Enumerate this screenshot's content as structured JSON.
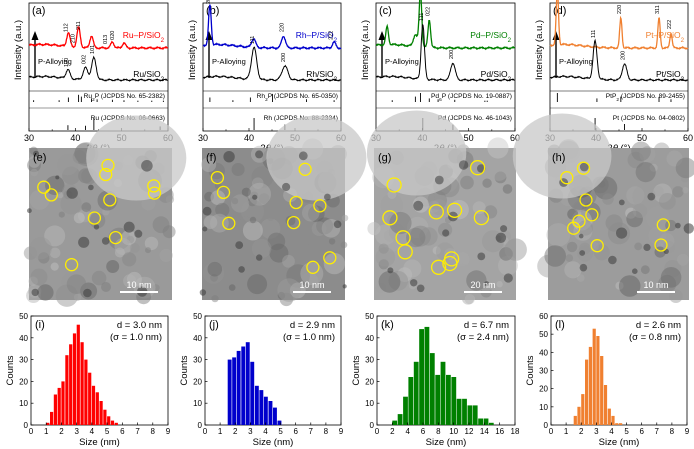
{
  "figure": {
    "xrd_xlabel_prefix": "2",
    "xrd_xlabel_theta": "θ",
    "xrd_xlabel_suffix": " (°)",
    "xrd_ylabel": "Intensity (a.u.)",
    "hist_xlabel": "Size (nm)",
    "hist_ylabel": "Counts",
    "arrow_label": "P-Alloying"
  },
  "tem_panels": [
    {
      "label": "(e)",
      "scale": "10 nm",
      "circles": 10
    },
    {
      "label": "(f)",
      "scale": "10 nm",
      "circles": 9
    },
    {
      "label": "(g)",
      "scale": "20 nm",
      "circles": 11
    },
    {
      "label": "(h)",
      "scale": "10 nm",
      "circles": 9
    }
  ],
  "chart_data": [
    {
      "type": "line",
      "label": "(a)",
      "xlabel": "2θ (°)",
      "ylabel": "Intensity (a.u.)",
      "xlim": [
        30,
        60
      ],
      "xticks": [
        30,
        40,
        50,
        60
      ],
      "series": [
        {
          "name": "Ru–P/SiO2",
          "color": "#ff0000",
          "peaks": [
            [
              38.5,
              0.14,
              0.5
            ],
            [
              40.7,
              0.2,
              0.5
            ],
            [
              43.5,
              0.12,
              0.5
            ],
            [
              48.0,
              0.06,
              0.5
            ],
            [
              50.5,
              0.05,
              0.5
            ]
          ],
          "peak_labels": [
            {
              "x": 38.3,
              "text": "112"
            },
            {
              "x": 39.8,
              "text": "210"
            },
            {
              "x": 41.0,
              "text": "211"
            },
            {
              "x": 46.8,
              "text": "013"
            },
            {
              "x": 48.3,
              "text": "020"
            }
          ]
        },
        {
          "name": "Ru/SiO2",
          "color": "#000000",
          "peaks": [
            [
              38.4,
              0.09,
              0.6
            ],
            [
              42.2,
              0.12,
              0.7
            ],
            [
              44.0,
              0.22,
              0.7
            ]
          ],
          "peak_labels": [
            {
              "x": 38.4,
              "text": "100"
            },
            {
              "x": 42.2,
              "text": "002"
            },
            {
              "x": 44.0,
              "text": "101"
            }
          ]
        }
      ],
      "reference_top": {
        "label": "Ru2P (JCPDS No. 65-2382)",
        "lines": [
          [
            31.0,
            0.2
          ],
          [
            36.5,
            0.2
          ],
          [
            38.5,
            0.5
          ],
          [
            40.7,
            0.8
          ],
          [
            41.3,
            0.6
          ],
          [
            43.5,
            0.4
          ],
          [
            44.7,
            0.3
          ],
          [
            48.0,
            0.25
          ],
          [
            50.5,
            0.2
          ],
          [
            53.5,
            0.15
          ],
          [
            56.5,
            0.15
          ],
          [
            59.0,
            0.15
          ]
        ]
      },
      "reference_bottom": {
        "label": "Ru (JCPDS No. 06-0663)",
        "lines": [
          [
            38.4,
            0.4
          ],
          [
            42.2,
            0.35
          ],
          [
            44.0,
            1.0
          ],
          [
            58.3,
            0.3
          ]
        ]
      }
    },
    {
      "type": "line",
      "label": "(b)",
      "xlabel": "2θ (°)",
      "ylabel": "Intensity (a.u.)",
      "xlim": [
        30,
        60
      ],
      "xticks": [
        30,
        40,
        50,
        60
      ],
      "series": [
        {
          "name": "Rh–P/SiO2",
          "color": "#0000cc",
          "peaks": [
            [
              31.5,
              0.4,
              0.4
            ],
            [
              41.0,
              0.09,
              0.6
            ],
            [
              47.5,
              0.12,
              0.6
            ],
            [
              58.5,
              0.06,
              0.5
            ]
          ],
          "peak_labels": [
            {
              "x": 31.5,
              "text": "200"
            },
            {
              "x": 47.5,
              "text": "220"
            },
            {
              "x": 58.2,
              "text": "222"
            }
          ]
        },
        {
          "name": "Rh/SiO2",
          "color": "#000000",
          "peaks": [
            [
              41.1,
              0.32,
              0.8
            ],
            [
              47.8,
              0.14,
              0.9
            ]
          ],
          "peak_labels": [
            {
              "x": 41.1,
              "text": "111"
            },
            {
              "x": 47.8,
              "text": "200"
            }
          ]
        }
      ],
      "reference_top": {
        "label": "Rh2P (JCPDS No. 65-0350)",
        "lines": [
          [
            31.5,
            0.5
          ],
          [
            36.5,
            0.2
          ],
          [
            40.3,
            0.5
          ],
          [
            45.1,
            0.9
          ],
          [
            52.5,
            0.3
          ],
          [
            58.5,
            0.2
          ]
        ]
      },
      "reference_bottom": {
        "label": "Rh (JCPDS No. 88-2334)",
        "lines": [
          [
            41.1,
            1.0
          ],
          [
            47.8,
            0.45
          ]
        ]
      }
    },
    {
      "type": "line",
      "label": "(c)",
      "xlabel": "2θ (°)",
      "ylabel": "Intensity (a.u.)",
      "xlim": [
        30,
        60
      ],
      "xticks": [
        30,
        40,
        50,
        60
      ],
      "series": [
        {
          "name": "Pd–P/SiO2",
          "color": "#008000",
          "peaks": [
            [
              32.4,
              0.18,
              0.4
            ],
            [
              38.5,
              0.12,
              0.6
            ],
            [
              39.6,
              0.55,
              0.4
            ],
            [
              41.5,
              0.28,
              0.4
            ]
          ],
          "peak_labels": [
            {
              "x": 39.6,
              "text": "113"
            },
            {
              "x": 41.5,
              "text": "022"
            }
          ]
        },
        {
          "name": "Pd/SiO2",
          "color": "#000000",
          "peaks": [
            [
              40.1,
              0.55,
              0.5
            ],
            [
              46.6,
              0.17,
              0.7
            ]
          ],
          "peak_labels": [
            {
              "x": 40.1,
              "text": "111"
            },
            {
              "x": 46.6,
              "text": "200"
            }
          ]
        }
      ],
      "reference_top": {
        "label": "Pd6P (JCPDS No. 19-0887)",
        "lines": [
          [
            33.5,
            0.2
          ],
          [
            38.5,
            0.6
          ],
          [
            39.6,
            1.0
          ],
          [
            41.5,
            0.4
          ],
          [
            43.4,
            0.3
          ],
          [
            47.0,
            0.25
          ],
          [
            53.5,
            0.15
          ],
          [
            54.0,
            0.15
          ]
        ]
      },
      "reference_bottom": {
        "label": "Pd (JCPDS No. 46-1043)",
        "lines": [
          [
            40.1,
            1.0
          ],
          [
            46.6,
            0.45
          ]
        ]
      }
    },
    {
      "type": "line",
      "label": "(d)",
      "xlabel": "2θ (°)",
      "ylabel": "Intensity (a.u.)",
      "xlim": [
        30,
        60
      ],
      "xticks": [
        30,
        40,
        50,
        60
      ],
      "series": [
        {
          "name": "Pt–P/SiO2",
          "color": "#f08030",
          "peaks": [
            [
              31.6,
              0.55,
              0.35
            ],
            [
              45.4,
              0.3,
              0.35
            ],
            [
              53.7,
              0.3,
              0.35
            ],
            [
              56.3,
              0.15,
              0.35
            ]
          ],
          "peak_labels": [
            {
              "x": 31.6,
              "text": "200"
            },
            {
              "x": 45.4,
              "text": "220"
            },
            {
              "x": 53.7,
              "text": "311"
            },
            {
              "x": 56.3,
              "text": "222"
            }
          ]
        },
        {
          "name": "Pt/SiO2",
          "color": "#000000",
          "peaks": [
            [
              39.8,
              0.38,
              0.6
            ],
            [
              46.2,
              0.16,
              0.7
            ]
          ],
          "peak_labels": [
            {
              "x": 39.8,
              "text": "111"
            },
            {
              "x": 46.2,
              "text": "200"
            }
          ]
        }
      ],
      "reference_top": {
        "label": "PtP2 (JCPDS No. 89-2455)",
        "lines": [
          [
            31.6,
            1.0
          ],
          [
            40.2,
            0.4
          ],
          [
            45.4,
            0.6
          ],
          [
            53.7,
            0.55
          ],
          [
            56.3,
            0.3
          ]
        ]
      },
      "reference_bottom": {
        "label": "Pt (JCPDS No. 04-0802)",
        "lines": [
          [
            39.8,
            1.0
          ],
          [
            46.2,
            0.5
          ]
        ]
      }
    },
    {
      "type": "bar",
      "label": "(i)",
      "xlabel": "Size (nm)",
      "ylabel": "Counts",
      "color": "#ff0000",
      "xlim": [
        0,
        9
      ],
      "xticks": [
        0,
        1,
        2,
        3,
        4,
        5,
        6,
        7,
        8,
        9
      ],
      "ylim": [
        0,
        50
      ],
      "yticks": [
        0,
        10,
        20,
        30,
        40,
        50
      ],
      "bin_width": 0.25,
      "bins": [
        1.0,
        1.25,
        1.5,
        1.75,
        2.0,
        2.25,
        2.5,
        2.75,
        3.0,
        3.25,
        3.5,
        3.75,
        4.0,
        4.25,
        4.5,
        4.75,
        5.0,
        5.25,
        5.5
      ],
      "values": [
        1,
        6,
        14,
        17,
        20,
        32,
        37,
        42,
        46,
        38,
        30,
        24,
        18,
        15,
        11,
        7,
        4,
        2,
        1
      ],
      "annotation_line1": "d = 3.0 nm",
      "annotation_line2": "(σ = 1.0 nm)"
    },
    {
      "type": "bar",
      "label": "(j)",
      "xlabel": "Size (nm)",
      "ylabel": "Counts",
      "color": "#0000cc",
      "xlim": [
        0,
        9
      ],
      "xticks": [
        0,
        1,
        2,
        3,
        4,
        5,
        6,
        7,
        8,
        9
      ],
      "ylim": [
        0,
        50
      ],
      "yticks": [
        0,
        10,
        20,
        30,
        40,
        50
      ],
      "bin_width": 0.3,
      "bins": [
        1.5,
        1.8,
        2.1,
        2.4,
        2.7,
        3.0,
        3.3,
        3.6,
        3.9,
        4.2,
        4.5,
        4.8
      ],
      "values": [
        30,
        31,
        34,
        36,
        38,
        29,
        18,
        16,
        13,
        11,
        8,
        2
      ],
      "annotation_line1": "d = 2.9 nm",
      "annotation_line2": "(σ = 1.0 nm)"
    },
    {
      "type": "bar",
      "label": "(k)",
      "xlabel": "Size (nm)",
      "ylabel": "Counts",
      "color": "#008000",
      "xlim": [
        0,
        18
      ],
      "xticks": [
        0,
        2,
        4,
        6,
        8,
        10,
        12,
        14,
        16,
        18
      ],
      "ylim": [
        0,
        50
      ],
      "yticks": [
        0,
        10,
        20,
        30,
        40,
        50
      ],
      "bin_width": 0.7,
      "bins": [
        2.0,
        2.7,
        3.4,
        4.1,
        4.8,
        5.5,
        6.2,
        6.9,
        7.6,
        8.3,
        9.0,
        9.7,
        10.4,
        11.1,
        11.8,
        12.5,
        13.2,
        13.9,
        14.6
      ],
      "values": [
        2,
        5,
        13,
        22,
        29,
        44,
        45,
        33,
        23,
        29,
        23,
        22,
        12,
        12,
        9,
        9,
        3,
        3,
        1
      ],
      "annotation_line1": "d = 6.7 nm",
      "annotation_line2": "(σ = 2.4 nm)"
    },
    {
      "type": "bar",
      "label": "(l)",
      "xlabel": "Size (nm)",
      "ylabel": "Counts",
      "color": "#f08030",
      "xlim": [
        0,
        9
      ],
      "xticks": [
        0,
        1,
        2,
        3,
        4,
        5,
        6,
        7,
        8,
        9
      ],
      "ylim": [
        0,
        60
      ],
      "yticks": [
        0,
        10,
        20,
        30,
        40,
        50,
        60
      ],
      "bin_width": 0.25,
      "bins": [
        1.5,
        1.75,
        2.0,
        2.25,
        2.5,
        2.75,
        3.0,
        3.25,
        3.5,
        3.75,
        4.0,
        4.25,
        4.5
      ],
      "values": [
        5,
        10,
        17,
        36,
        43,
        53,
        49,
        38,
        22,
        9,
        5,
        1,
        1
      ],
      "annotation_line1": "d = 2.6 nm",
      "annotation_line2": "(σ = 0.8 nm)"
    }
  ]
}
